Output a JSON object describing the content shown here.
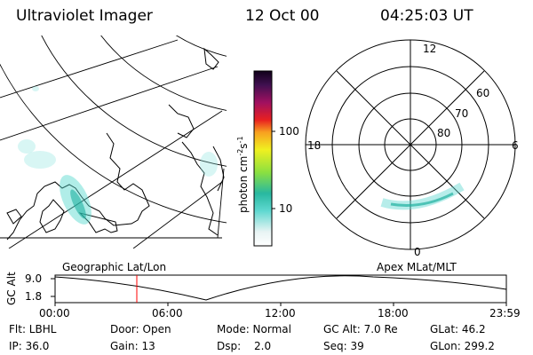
{
  "header": {
    "instrument": "Ultraviolet Imager",
    "date": "12 Oct 00",
    "time": "04:25:03 UT"
  },
  "colorbar": {
    "unit_label": "photon cm",
    "unit_exp1": "-2",
    "unit_s": "s",
    "unit_exp2": "-1",
    "ticks": [
      "100",
      "10"
    ]
  },
  "polar_plot": {
    "mlt_labels": [
      "12",
      "18",
      "6",
      "0"
    ],
    "lat_labels": [
      "60",
      "70",
      "80"
    ]
  },
  "map_labels": {
    "left": "Geographic Lat/Lon",
    "right": "Apex MLat/MLT"
  },
  "orbit_plot": {
    "ylabel": "GC Alt",
    "ytick_top": "9.0",
    "ytick_bottom": "1.8",
    "xticks": [
      "00:00",
      "06:00",
      "12:00",
      "18:00",
      "23:59"
    ],
    "current_marker_color": "#ff0000"
  },
  "status": {
    "filter": "Flt: LBHL",
    "door": "Door: Open",
    "mode": "Mode: Normal",
    "gc_alt": "GC Alt: 7.0 Re",
    "glat": "GLat:  46.2",
    "ip": "IP: 36.0",
    "gain": "Gain: 13",
    "dsp_label": "Dsp:",
    "dsp_value": "2.0",
    "seq": "Seq: 39",
    "glon": "GLon: 299.2"
  }
}
